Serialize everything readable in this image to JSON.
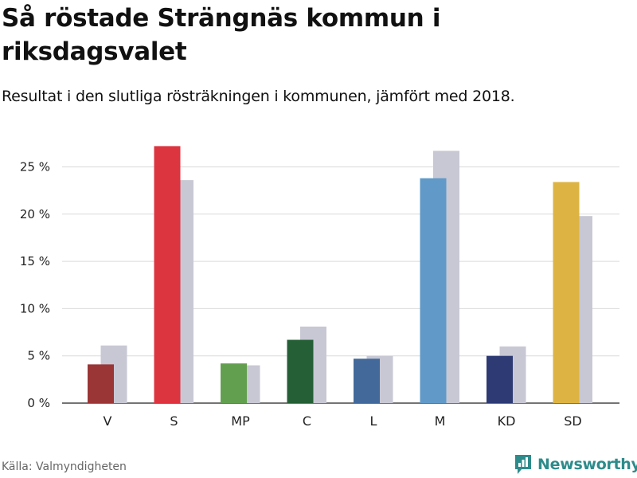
{
  "title": "Så röstade Strängnäs kommun i riksdagsvalet",
  "subtitle": "Resultat i den slutliga rösträkningen i kommunen, jämfört med 2018.",
  "source": "Källa: Valmyndigheten",
  "brand": {
    "name": "Newsworthy",
    "icon": "newsworthy-logo-icon"
  },
  "chart_data": {
    "type": "bar",
    "categories": [
      "V",
      "S",
      "MP",
      "C",
      "L",
      "M",
      "KD",
      "SD"
    ],
    "series": [
      {
        "values": [
          4.1,
          27.2,
          4.2,
          6.7,
          4.7,
          23.8,
          5.0,
          23.4
        ],
        "colors": [
          "#9a3636",
          "#dc3540",
          "#62a04f",
          "#255f35",
          "#43699b",
          "#6199c8",
          "#2e3a74",
          "#ddb443"
        ]
      },
      {
        "values": [
          6.1,
          23.6,
          4.0,
          8.1,
          5.0,
          26.7,
          6.0,
          19.8
        ],
        "color": "#c8c8d4"
      }
    ],
    "yticks": [
      0,
      5,
      10,
      15,
      20,
      25
    ],
    "ytick_labels": [
      "0 %",
      "5 %",
      "10 %",
      "15 %",
      "20 %",
      "25 %"
    ],
    "ylim": [
      0,
      27.5
    ],
    "grid": true,
    "xlabel": "",
    "ylabel": ""
  }
}
